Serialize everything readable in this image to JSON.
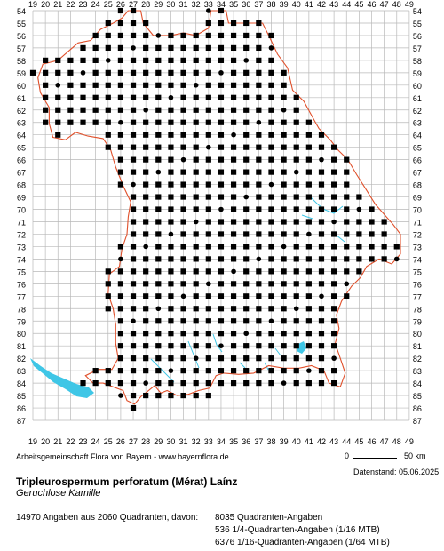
{
  "map": {
    "x_labels": [
      "19",
      "20",
      "21",
      "22",
      "23",
      "24",
      "25",
      "26",
      "27",
      "28",
      "29",
      "30",
      "31",
      "32",
      "33",
      "34",
      "35",
      "36",
      "37",
      "38",
      "39",
      "40",
      "41",
      "42",
      "43",
      "44",
      "45",
      "46",
      "47",
      "48",
      "49"
    ],
    "y_labels": [
      "54",
      "55",
      "56",
      "57",
      "58",
      "59",
      "60",
      "61",
      "62",
      "63",
      "64",
      "65",
      "66",
      "67",
      "68",
      "69",
      "70",
      "71",
      "72",
      "73",
      "74",
      "75",
      "76",
      "77",
      "78",
      "79",
      "80",
      "81",
      "82",
      "83",
      "84",
      "85",
      "86",
      "87"
    ],
    "colors": {
      "grid": "#b9b9b9",
      "border": "#e0502b",
      "water": "#3fc6e6",
      "dot": "#000000"
    },
    "occurrence_rows": [
      {
        "row": "54",
        "cols": "26-27,33-34"
      },
      {
        "row": "55",
        "cols": "25-28,33-37"
      },
      {
        "row": "56",
        "cols": "24-38"
      },
      {
        "row": "57",
        "cols": "23-38"
      },
      {
        "row": "58",
        "cols": "20-38"
      },
      {
        "row": "59",
        "cols": "19-39"
      },
      {
        "row": "60",
        "cols": "20-39"
      },
      {
        "row": "61",
        "cols": "20-40"
      },
      {
        "row": "62",
        "cols": "20-40"
      },
      {
        "row": "63",
        "cols": "20-41"
      },
      {
        "row": "64",
        "cols": "21,25-42"
      },
      {
        "row": "65",
        "cols": "25-43"
      },
      {
        "row": "66",
        "cols": "26-44"
      },
      {
        "row": "67",
        "cols": "26-44"
      },
      {
        "row": "68",
        "cols": "26-44"
      },
      {
        "row": "69",
        "cols": "27-45"
      },
      {
        "row": "70",
        "cols": "27-46"
      },
      {
        "row": "71",
        "cols": "27-47"
      },
      {
        "row": "72",
        "cols": "27-47"
      },
      {
        "row": "73",
        "cols": "26-48"
      },
      {
        "row": "74",
        "cols": "26-48"
      },
      {
        "row": "75",
        "cols": "25-45"
      },
      {
        "row": "76",
        "cols": "25-44"
      },
      {
        "row": "77",
        "cols": "25-44"
      },
      {
        "row": "78",
        "cols": "25-43"
      },
      {
        "row": "79",
        "cols": "26-43"
      },
      {
        "row": "80",
        "cols": "26-43"
      },
      {
        "row": "81",
        "cols": "26-43"
      },
      {
        "row": "82",
        "cols": "26-43"
      },
      {
        "row": "83",
        "cols": "24-43"
      },
      {
        "row": "84",
        "cols": "23-43"
      },
      {
        "row": "85",
        "cols": "26-33"
      },
      {
        "row": "86",
        "cols": "27"
      }
    ]
  },
  "credit": "Arbeitsgemeinschaft Flora von Bayern - www.bayernflora.de",
  "scale": {
    "zero": "0",
    "label": "50 km"
  },
  "datestand": "Datenstand: 05.06.2025",
  "species": "Tripleurospermum perforatum (Mérat) Laínz",
  "common_name": "Geruchlose Kamille",
  "summary": "14970 Angaben aus 2060 Quadranten, davon:",
  "stats": [
    "8035 Quadranten-Angaben",
    "536 1/4-Quadranten-Angaben (1/16 MTB)",
    "6376 1/16-Quadranten-Angaben (1/64 MTB)"
  ]
}
